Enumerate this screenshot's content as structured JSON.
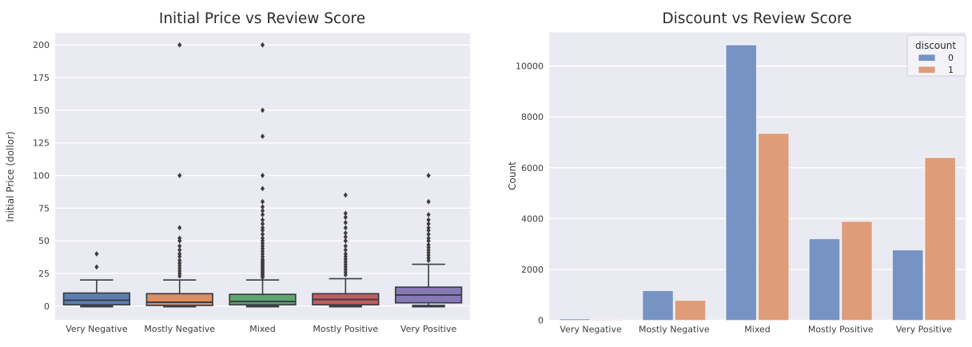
{
  "figure": {
    "background": "#ffffff",
    "plot_background": "#eaeaf2",
    "grid_color": "#ffffff"
  },
  "chart_data": [
    {
      "type": "box",
      "title": "Initial Price vs Review Score",
      "xlabel": "",
      "ylabel": "Initial Price (dollor)",
      "categories": [
        "Very Negative",
        "Mostly Negative",
        "Mixed",
        "Mostly Positive",
        "Very Positive"
      ],
      "ylim": [
        -10.5,
        209
      ],
      "yticks": [
        0,
        25,
        50,
        75,
        100,
        125,
        150,
        175,
        200
      ],
      "grid": true,
      "box_edge_color": "#3b3e45",
      "flier_color": "#3d3d3d",
      "boxes": [
        {
          "category": "Very Negative",
          "color": "#5a7fb3",
          "whisker_low": 0,
          "q1": 1,
          "median": 4.5,
          "q3": 10,
          "whisker_high": 20,
          "outliers": [
            30,
            40
          ]
        },
        {
          "category": "Mostly Negative",
          "color": "#dd8d5f",
          "whisker_low": 0,
          "q1": 0.5,
          "median": 3,
          "q3": 9.5,
          "whisker_high": 20,
          "outliers": [
            23,
            25,
            27,
            29,
            31,
            33,
            35,
            38,
            40,
            43,
            46,
            50,
            52,
            60,
            100,
            200
          ]
        },
        {
          "category": "Mixed",
          "color": "#60a473",
          "whisker_low": 0,
          "q1": 1,
          "median": 3.5,
          "q3": 9,
          "whisker_high": 20,
          "outliers": [
            22,
            23,
            24,
            25,
            26,
            27,
            28,
            29,
            30,
            31,
            32,
            33,
            34,
            35,
            36,
            38,
            40,
            42,
            44,
            46,
            48,
            50,
            52,
            55,
            58,
            60,
            63,
            66,
            70,
            73,
            76,
            80,
            90,
            100,
            130,
            150,
            200
          ]
        },
        {
          "category": "Mostly Positive",
          "color": "#c15d60",
          "whisker_low": 0,
          "q1": 1,
          "median": 5,
          "q3": 9.5,
          "whisker_high": 21,
          "outliers": [
            24,
            26,
            28,
            30,
            32,
            34,
            36,
            38,
            40,
            43,
            46,
            50,
            53,
            56,
            60,
            64,
            68,
            71,
            85
          ]
        },
        {
          "category": "Very Positive",
          "color": "#8679b5",
          "whisker_low": 0,
          "q1": 2.5,
          "median": 8.5,
          "q3": 14.5,
          "whisker_high": 32,
          "outliers": [
            35,
            37,
            39,
            41,
            43,
            45,
            47,
            50,
            52,
            55,
            58,
            60,
            63,
            66,
            70,
            80,
            100
          ]
        }
      ]
    },
    {
      "type": "bar",
      "title": "Discount vs Review Score",
      "xlabel": "",
      "ylabel": "Count",
      "categories": [
        "Very Negative",
        "Mostly Negative",
        "Mixed",
        "Mostly Positive",
        "Very Positive"
      ],
      "ylim": [
        0,
        11320
      ],
      "yticks": [
        0,
        2000,
        4000,
        6000,
        8000,
        10000
      ],
      "grid": true,
      "legend": {
        "title": "discount",
        "position": "upper right",
        "entries": [
          {
            "label": "0",
            "color": "#7793c4"
          },
          {
            "label": "1",
            "color": "#df9c79"
          }
        ]
      },
      "series": [
        {
          "name": "0",
          "color": "#7793c4",
          "values": [
            60,
            1170,
            10830,
            3210,
            2770
          ]
        },
        {
          "name": "1",
          "color": "#df9c79",
          "values": [
            25,
            790,
            7350,
            3890,
            6400
          ]
        }
      ]
    }
  ]
}
